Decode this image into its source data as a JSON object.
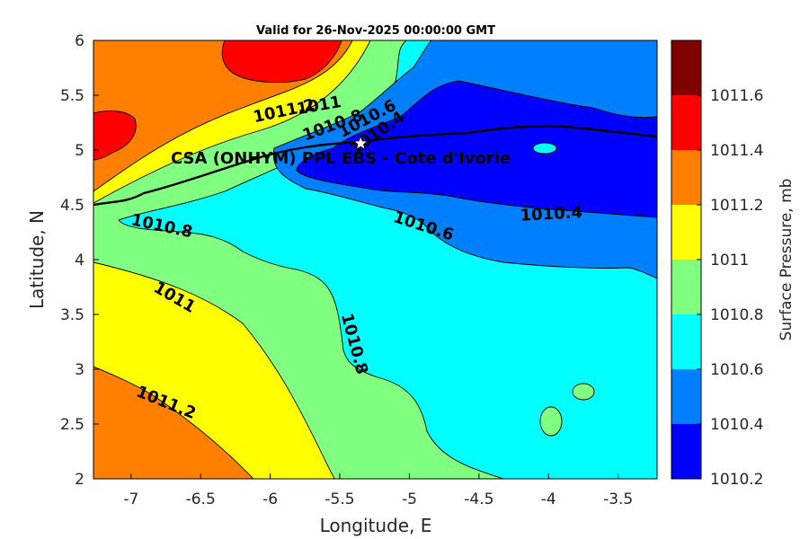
{
  "title": "Valid for 26-Nov-2025 00:00:00 GMT",
  "xlabel": "Longitude, E",
  "ylabel": "Latitude, N",
  "colorbar_label": "Surface Pressure, mb",
  "site_label": "CSA (ONHYM) PPL EBS  - Cote d'Ivorie",
  "chart_data": {
    "type": "heatmap",
    "title": "Valid for 26-Nov-2025 00:00:00 GMT",
    "xlabel": "Longitude, E",
    "ylabel": "Latitude, N",
    "xlim": [
      -7.27,
      -3.22
    ],
    "ylim": [
      2,
      6
    ],
    "x_ticks": [
      "-7",
      "-6.5",
      "-6",
      "-5.5",
      "-5",
      "-4.5",
      "-4",
      "-3.5"
    ],
    "y_ticks": [
      "2",
      "2.5",
      "3",
      "3.5",
      "4",
      "4.5",
      "5",
      "5.5",
      "6"
    ],
    "colorbar": {
      "label": "Surface Pressure, mb",
      "ticks": [
        "1010.2",
        "1010.4",
        "1010.6",
        "1010.8",
        "1011",
        "1011.2",
        "1011.4",
        "1011.6"
      ],
      "levels": [
        {
          "from": 1010.2,
          "to": 1010.4,
          "color": "#0000ff"
        },
        {
          "from": 1010.4,
          "to": 1010.6,
          "color": "#0080ff"
        },
        {
          "from": 1010.6,
          "to": 1010.8,
          "color": "#00ffff"
        },
        {
          "from": 1010.8,
          "to": 1011.0,
          "color": "#80ff80"
        },
        {
          "from": 1011.0,
          "to": 1011.2,
          "color": "#ffff00"
        },
        {
          "from": 1011.2,
          "to": 1011.4,
          "color": "#ff8000"
        },
        {
          "from": 1011.4,
          "to": 1011.6,
          "color": "#ff0000"
        },
        {
          "from": 1011.6,
          "to": 1011.8,
          "color": "#800000"
        }
      ]
    },
    "contour_labels": [
      {
        "text": "1011.2",
        "lon": -5.9,
        "lat": 5.35,
        "angle": -12
      },
      {
        "text": "1011",
        "lon": -5.65,
        "lat": 5.4,
        "angle": -10
      },
      {
        "text": "1010.8",
        "lon": -5.55,
        "lat": 5.22,
        "angle": -20
      },
      {
        "text": "1010.6",
        "lon": -5.3,
        "lat": 5.28,
        "angle": -28
      },
      {
        "text": "1010.4",
        "lon": -5.23,
        "lat": 5.15,
        "angle": -35
      },
      {
        "text": "1010.8",
        "lon": -6.78,
        "lat": 4.3,
        "angle": 12
      },
      {
        "text": "1010.6",
        "lon": -4.9,
        "lat": 4.3,
        "angle": 18
      },
      {
        "text": "1010.4",
        "lon": -3.98,
        "lat": 4.41,
        "angle": -3
      },
      {
        "text": "1011",
        "lon": -6.69,
        "lat": 3.65,
        "angle": 30
      },
      {
        "text": "1010.8",
        "lon": -5.4,
        "lat": 3.23,
        "angle": 75
      },
      {
        "text": "1011.2",
        "lon": -6.75,
        "lat": 2.69,
        "angle": 22
      }
    ],
    "site": {
      "lon": -5.35,
      "lat": 5.06,
      "marker": "star"
    }
  }
}
